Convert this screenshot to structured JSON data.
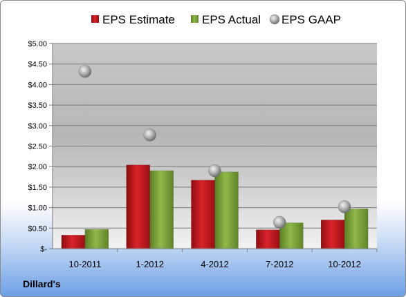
{
  "chart_data": {
    "type": "bar",
    "categories": [
      "10-2011",
      "1-2012",
      "4-2012",
      "7-2012",
      "10-2012"
    ],
    "series": [
      {
        "name": "EPS Estimate",
        "kind": "bar",
        "color": "#c0161c",
        "values": [
          0.33,
          2.04,
          1.67,
          0.46,
          0.7
        ]
      },
      {
        "name": "EPS Actual",
        "kind": "bar",
        "color": "#7aa33a",
        "values": [
          0.47,
          1.9,
          1.87,
          0.63,
          0.97
        ]
      },
      {
        "name": "EPS GAAP",
        "kind": "marker",
        "color": "#a8a8a8",
        "values": [
          4.32,
          2.77,
          1.9,
          0.64,
          1.02
        ]
      }
    ],
    "yticks": [
      "$-",
      "$0.50",
      "$1.00",
      "$1.50",
      "$2.00",
      "$2.50",
      "$3.00",
      "$3.50",
      "$4.00",
      "$4.50",
      "$5.00"
    ],
    "ylim": [
      0,
      5
    ],
    "grid": true,
    "legend_position": "top"
  },
  "footer": {
    "company": "Dillard's"
  }
}
